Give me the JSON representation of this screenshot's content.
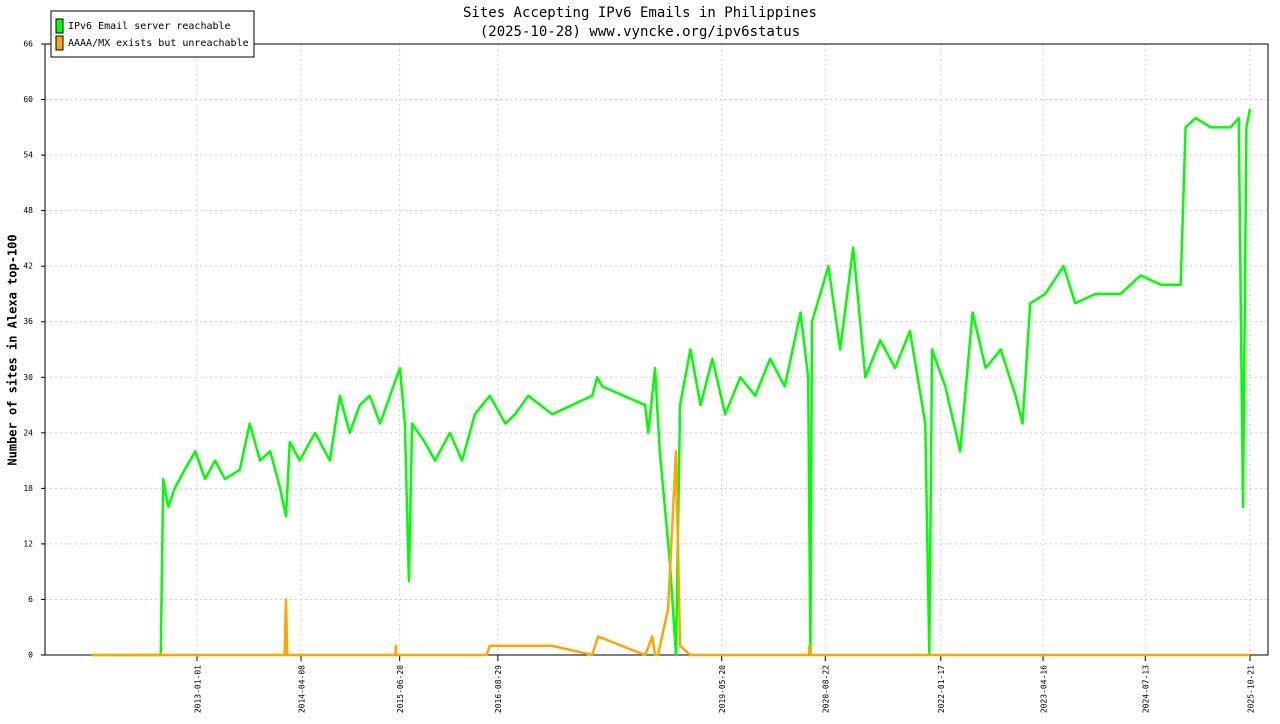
{
  "chart_data": {
    "type": "line",
    "title": "Sites Accepting IPv6 Emails in Philippines",
    "subtitle": "(2025-10-28) www.vyncke.org/ipv6status",
    "y_label": "Number of sites in Alexa top-100",
    "grid": true,
    "legend": "top-left",
    "xlim": [
      "2011-02-26",
      "2026-01-09"
    ],
    "xticks": [
      "2013-01-01",
      "2014-04-08",
      "2015-06-20",
      "2016-08-29",
      "2019-05-20",
      "2020-08-22",
      "2022-01-17",
      "2023-04-16",
      "2024-07-13",
      "2025-10-21"
    ],
    "ylim": [
      0,
      66
    ],
    "yticks": [
      0,
      6,
      12,
      18,
      24,
      30,
      36,
      42,
      48,
      54,
      60,
      66
    ],
    "series": [
      {
        "name": "IPv6 Email server reachable",
        "color": "#00ff00",
        "x": [
          "2011-09-20",
          "2012-07-24",
          "2012-08-04",
          "2012-08-26",
          "2012-09-24",
          "2012-11-07",
          "2012-12-24",
          "2013-02-06",
          "2013-03-22",
          "2013-05-05",
          "2013-07-10",
          "2013-08-23",
          "2013-10-08",
          "2013-11-22",
          "2014-01-05",
          "2014-01-31",
          "2014-02-17",
          "2014-04-02",
          "2014-06-09",
          "2014-08-14",
          "2014-09-27",
          "2014-11-10",
          "2014-12-25",
          "2015-02-07",
          "2015-03-25",
          "2015-05-08",
          "2015-06-21",
          "2015-07-13",
          "2015-07-31",
          "2015-08-14",
          "2015-10-09",
          "2015-11-24",
          "2016-01-29",
          "2016-03-23",
          "2016-05-19",
          "2016-07-24",
          "2016-10-01",
          "2016-11-14",
          "2017-01-11",
          "2017-04-27",
          "2017-10-22",
          "2017-11-13",
          "2017-12-06",
          "2018-06-14",
          "2018-06-28",
          "2018-07-28",
          "2018-08-18",
          "2018-10-02",
          "2018-10-29",
          "2018-11-16",
          "2019-01-01",
          "2019-02-15",
          "2019-04-09",
          "2019-06-04",
          "2019-08-11",
          "2019-10-16",
          "2019-12-21",
          "2020-02-24",
          "2020-05-04",
          "2020-06-07",
          "2020-06-17",
          "2020-06-24",
          "2020-09-05",
          "2020-10-27",
          "2020-12-24",
          "2021-02-16",
          "2021-04-23",
          "2021-06-28",
          "2021-09-02",
          "2021-11-09",
          "2021-11-27",
          "2021-12-09",
          "2022-02-06",
          "2022-04-13",
          "2022-06-07",
          "2022-08-04",
          "2022-10-10",
          "2022-12-15",
          "2023-01-15",
          "2023-02-18",
          "2023-04-26",
          "2023-07-16",
          "2023-09-06",
          "2023-12-04",
          "2024-03-25",
          "2024-06-22",
          "2024-09-20",
          "2024-12-17",
          "2025-01-08",
          "2025-02-22",
          "2025-04-29",
          "2025-07-27",
          "2025-09-01",
          "2025-09-20",
          "2025-10-05",
          "2025-10-21"
        ],
        "values": [
          0,
          0,
          19,
          16,
          18,
          20,
          22,
          19,
          21,
          19,
          20,
          25,
          21,
          22,
          18,
          15,
          23,
          21,
          24,
          21,
          28,
          24,
          27,
          28,
          25,
          28,
          31,
          25,
          8,
          25,
          23,
          21,
          24,
          21,
          26,
          28,
          25,
          26,
          28,
          26,
          28,
          30,
          29,
          27,
          24,
          31,
          22,
          10,
          0,
          27,
          33,
          27,
          32,
          26,
          30,
          28,
          32,
          29,
          37,
          30,
          0,
          36,
          42,
          33,
          44,
          30,
          34,
          31,
          35,
          25,
          0,
          33,
          29,
          22,
          37,
          31,
          33,
          28,
          25,
          38,
          39,
          42,
          38,
          39,
          39,
          41,
          40,
          40,
          57,
          58,
          57,
          57,
          58,
          16,
          57,
          59
        ]
      },
      {
        "name": "AAAA/MX exists but unreachable",
        "color": "#ffa500",
        "x": [
          "2011-09-20",
          "2013-12-20",
          "2014-01-25",
          "2014-01-31",
          "2014-02-06",
          "2015-06-01",
          "2015-06-03",
          "2015-06-05",
          "2016-07-10",
          "2016-07-24",
          "2017-04-27",
          "2017-10-22",
          "2017-11-17",
          "2018-06-14",
          "2018-07-16",
          "2018-07-28",
          "2018-08-10",
          "2018-09-24",
          "2018-10-29",
          "2018-11-16",
          "2019-01-01",
          "2020-06-10",
          "2020-06-12",
          "2020-06-14",
          "2025-10-21"
        ],
        "values": [
          0,
          0,
          0,
          6,
          0,
          0,
          1,
          0,
          0,
          1,
          1,
          0,
          2,
          0,
          2,
          0,
          0,
          5,
          22,
          1,
          0,
          0,
          1,
          0,
          0
        ]
      }
    ]
  }
}
